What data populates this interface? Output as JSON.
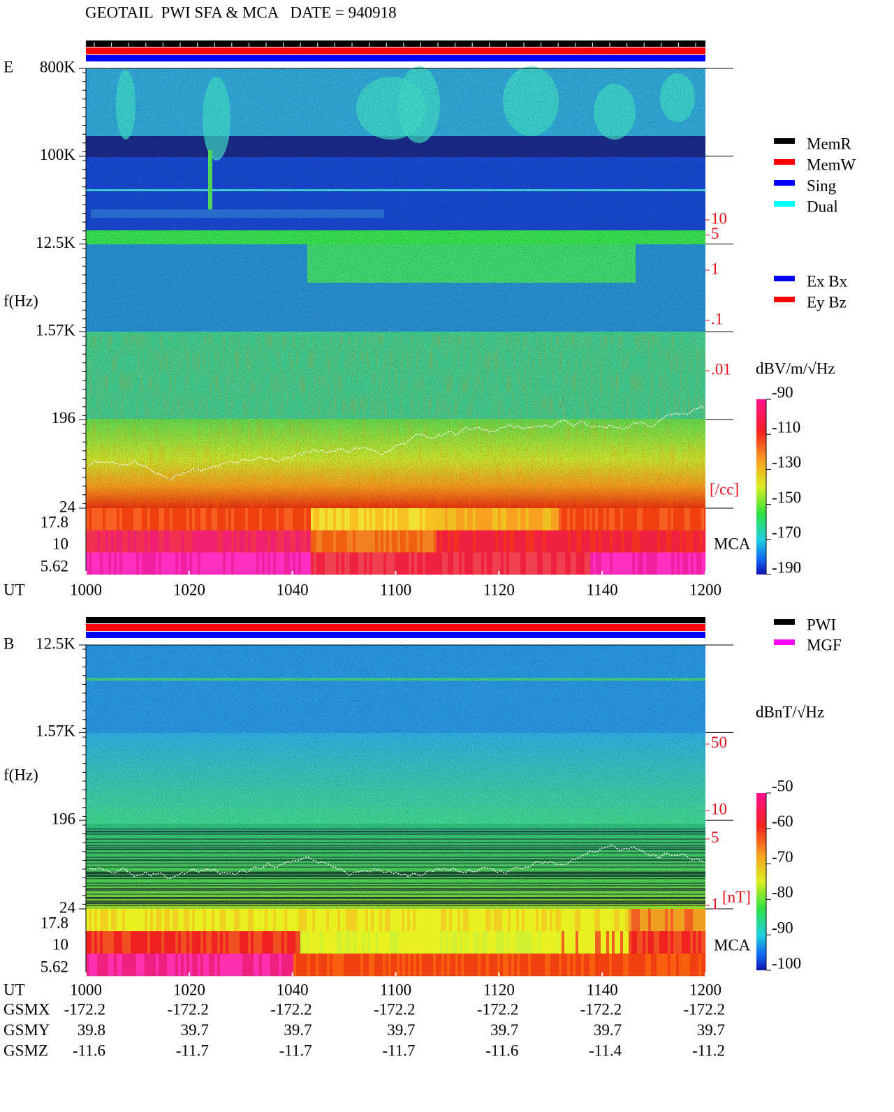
{
  "title": "GEOTAIL  PWI SFA & MCA   DATE = 940918",
  "panels": [
    {
      "label": "E",
      "y_axis_label": "f(Hz)",
      "yscale": "log",
      "ylim": [
        24,
        800000
      ],
      "yticks": [
        {
          "value": 800000,
          "label": "800K"
        },
        {
          "value": 100000,
          "label": "100K"
        },
        {
          "value": 12500,
          "label": "12.5K"
        },
        {
          "value": 1570,
          "label": "1.57K"
        },
        196,
        24
      ],
      "mca_ticks": [
        17.8,
        10,
        5.62
      ],
      "mca_label": "MCA",
      "x_axis_label": "UT",
      "xticks": [
        1000,
        1020,
        1040,
        1100,
        1120,
        1140,
        1200
      ],
      "density": {
        "unit": "[/cc]",
        "ticks": [
          10,
          5,
          1,
          {
            "value": 0.1,
            "label": ".1"
          },
          {
            "value": 0.01,
            "label": ".01"
          }
        ]
      },
      "colorbar": {
        "unit": "dBV/m/√Hz",
        "lim": [
          -190,
          -90
        ],
        "ticks": [
          -90,
          -110,
          -130,
          -150,
          -170,
          -190
        ]
      },
      "legends": [
        [
          {
            "name": "MemR",
            "color": "#000000"
          },
          {
            "name": "MemW",
            "color": "#ff0000"
          },
          {
            "name": "Sing",
            "color": "#0000ff"
          },
          {
            "name": "Dual",
            "color": "#00ffff"
          }
        ],
        [
          {
            "name": "Ex Bx",
            "color": "#0000ff"
          },
          {
            "name": "Ey Bz",
            "color": "#ff0000"
          }
        ]
      ]
    },
    {
      "label": "B",
      "y_axis_label": "f(Hz)",
      "yscale": "log",
      "ylim": [
        24,
        12500
      ],
      "yticks": [
        {
          "value": 12500,
          "label": "12.5K"
        },
        {
          "value": 1570,
          "label": "1.57K"
        },
        196,
        24
      ],
      "mca_ticks": [
        17.8,
        10,
        5.62
      ],
      "mca_label": "MCA",
      "x_axis_label": "UT",
      "xticks": [
        1000,
        1020,
        1040,
        1100,
        1120,
        1140,
        1200
      ],
      "density": {
        "unit": "[nT]",
        "ticks": [
          50,
          10,
          5,
          1
        ]
      },
      "colorbar": {
        "unit": "dBnT/√Hz",
        "lim": [
          -100,
          -50
        ],
        "ticks": [
          -50,
          -60,
          -70,
          -80,
          -90,
          -100
        ]
      },
      "legends": [
        [
          {
            "name": "PWI",
            "color": "#000000"
          },
          {
            "name": "MGF",
            "color": "#ff00ff"
          }
        ]
      ]
    }
  ],
  "ephemeris": [
    {
      "name": "GSMX",
      "values": [
        -172.2,
        -172.2,
        -172.2,
        -172.2,
        -172.2,
        -172.2,
        -172.2
      ]
    },
    {
      "name": "GSMY",
      "values": [
        39.8,
        39.7,
        39.7,
        39.7,
        39.7,
        39.7,
        39.7
      ]
    },
    {
      "name": "GSMZ",
      "values": [
        -11.6,
        -11.7,
        -11.7,
        -11.7,
        -11.6,
        -11.4,
        -11.2
      ]
    }
  ]
}
